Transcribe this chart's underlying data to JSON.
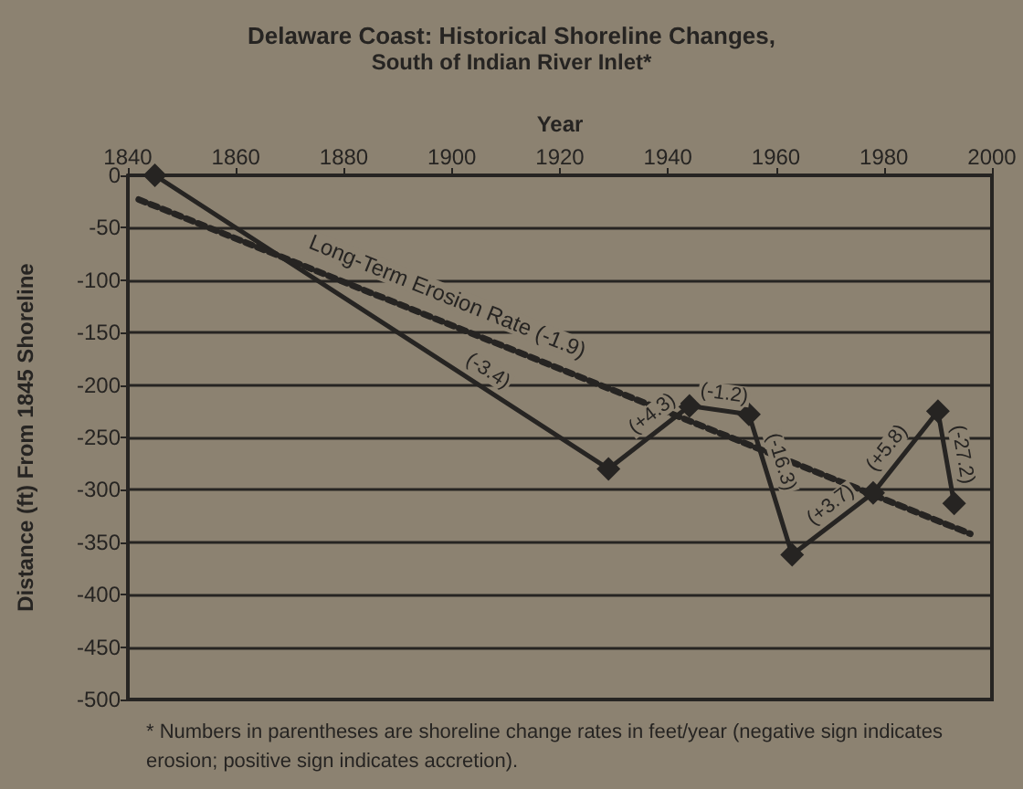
{
  "chart_data": {
    "type": "line",
    "title": "Delaware Coast: Historical Shoreline Changes,",
    "subtitle": "South of Indian River Inlet*",
    "xlabel": "Year",
    "ylabel": "Distance (ft) From 1845 Shoreline",
    "xlim": [
      1840,
      2000
    ],
    "xticks": [
      1840,
      1860,
      1880,
      1900,
      1920,
      1940,
      1960,
      1980,
      2000
    ],
    "ylim": [
      -500,
      0
    ],
    "yticks": [
      -500,
      -450,
      -400,
      -350,
      -300,
      -250,
      -200,
      -150,
      -100,
      -50,
      0
    ],
    "grid": "y",
    "legend": false,
    "series": [
      {
        "color": "#262422",
        "marker": "diamond",
        "line_style": "solid",
        "x": [
          1845,
          1929,
          1944,
          1955,
          1963,
          1978,
          1990,
          1993
        ],
        "values": [
          0,
          -280,
          -220,
          -228,
          -362,
          -303,
          -225,
          -313
        ]
      },
      {
        "name": "Long-Term Erosion Rate (-1.9)",
        "color": "#262422",
        "marker": "none",
        "line_style": "dashed",
        "x": [
          1842,
          1996
        ],
        "values": [
          -23,
          -342
        ]
      }
    ],
    "annotations": [
      {
        "text": "(-3.4)",
        "x": 1905,
        "y": -200
      },
      {
        "text": "(+4.3)",
        "x": 1939,
        "y": -240
      },
      {
        "text": "(-1.2)",
        "x": 1950,
        "y": -224
      },
      {
        "text": "(-16.3)",
        "x": 1958,
        "y": -278
      },
      {
        "text": "(+3.7)",
        "x": 1972,
        "y": -327
      },
      {
        "text": "(+5.8)",
        "x": 1983,
        "y": -270
      },
      {
        "text": "(-27.2)",
        "x": 1991.5,
        "y": -269
      },
      "* Numbers in parentheses are shoreline change rates in feet/year (negative sign indicates erosion; positive sign indicates accretion)."
    ]
  }
}
